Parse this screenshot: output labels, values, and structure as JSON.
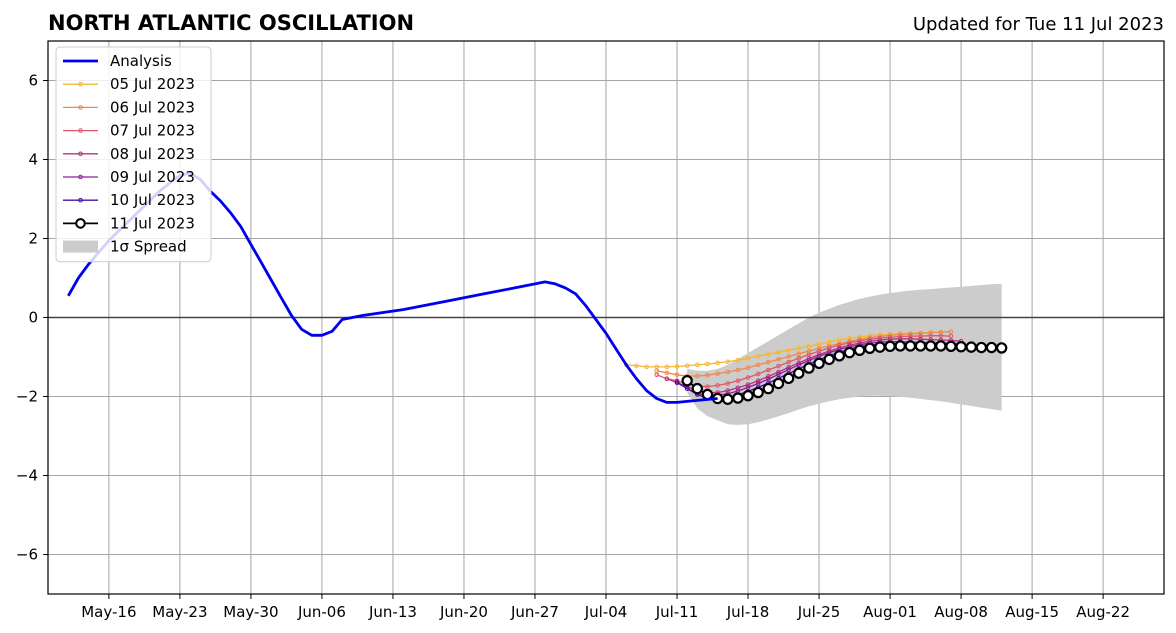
{
  "chart_data": {
    "type": "line",
    "title": "NORTH ATLANTIC OSCILLATION",
    "subtitle": "Updated for Tue 11 Jul 2023",
    "xlabel": "",
    "ylabel": "",
    "xlim": [
      "2023-05-10",
      "2023-08-28"
    ],
    "ylim": [
      -7,
      7
    ],
    "grid": true,
    "legend_position": "top-left",
    "x_ticks": [
      "2023-05-16",
      "2023-05-23",
      "2023-05-30",
      "2023-06-06",
      "2023-06-13",
      "2023-06-20",
      "2023-06-27",
      "2023-07-04",
      "2023-07-11",
      "2023-07-18",
      "2023-07-25",
      "2023-08-01",
      "2023-08-08",
      "2023-08-15",
      "2023-08-22"
    ],
    "x_tick_labels": [
      "May-16",
      "May-23",
      "May-30",
      "Jun-06",
      "Jun-13",
      "Jun-20",
      "Jun-27",
      "Jul-04",
      "Jul-11",
      "Jul-18",
      "Jul-25",
      "Aug-01",
      "Aug-08",
      "Aug-15",
      "Aug-22"
    ],
    "y_ticks": [
      -6,
      -4,
      -2,
      0,
      2,
      4,
      6
    ],
    "y_tick_labels": [
      "−6",
      "−4",
      "−2",
      "0",
      "2",
      "4",
      "6"
    ],
    "analysis": {
      "name": "Analysis",
      "color": "#0000ee",
      "points": [
        [
          "2023-05-12",
          0.55
        ],
        [
          "2023-05-13",
          1.0
        ],
        [
          "2023-05-14",
          1.35
        ],
        [
          "2023-05-15",
          1.65
        ],
        [
          "2023-05-16",
          1.95
        ],
        [
          "2023-05-17",
          2.2
        ],
        [
          "2023-05-18",
          2.45
        ],
        [
          "2023-05-19",
          2.7
        ],
        [
          "2023-05-20",
          2.95
        ],
        [
          "2023-05-21",
          3.2
        ],
        [
          "2023-05-22",
          3.4
        ],
        [
          "2023-05-23",
          3.6
        ],
        [
          "2023-05-24",
          3.65
        ],
        [
          "2023-05-25",
          3.5
        ],
        [
          "2023-05-26",
          3.2
        ],
        [
          "2023-05-27",
          2.95
        ],
        [
          "2023-05-28",
          2.65
        ],
        [
          "2023-05-29",
          2.3
        ],
        [
          "2023-05-30",
          1.85
        ],
        [
          "2023-05-31",
          1.4
        ],
        [
          "2023-06-01",
          0.95
        ],
        [
          "2023-06-02",
          0.5
        ],
        [
          "2023-06-03",
          0.05
        ],
        [
          "2023-06-04",
          -0.3
        ],
        [
          "2023-06-05",
          -0.45
        ],
        [
          "2023-06-06",
          -0.45
        ],
        [
          "2023-06-07",
          -0.35
        ],
        [
          "2023-06-08",
          -0.05
        ],
        [
          "2023-06-09",
          0.0
        ],
        [
          "2023-06-10",
          0.05
        ],
        [
          "2023-06-14",
          0.2
        ],
        [
          "2023-06-18",
          0.4
        ],
        [
          "2023-06-22",
          0.6
        ],
        [
          "2023-06-25",
          0.75
        ],
        [
          "2023-06-27",
          0.85
        ],
        [
          "2023-06-28",
          0.9
        ],
        [
          "2023-06-29",
          0.85
        ],
        [
          "2023-06-30",
          0.75
        ],
        [
          "2023-07-01",
          0.6
        ],
        [
          "2023-07-02",
          0.3
        ],
        [
          "2023-07-03",
          -0.05
        ],
        [
          "2023-07-04",
          -0.4
        ],
        [
          "2023-07-05",
          -0.8
        ],
        [
          "2023-07-06",
          -1.2
        ],
        [
          "2023-07-07",
          -1.55
        ],
        [
          "2023-07-08",
          -1.85
        ],
        [
          "2023-07-09",
          -2.05
        ],
        [
          "2023-07-10",
          -2.15
        ],
        [
          "2023-07-11",
          -2.15
        ],
        [
          "2023-07-13",
          -2.1
        ],
        [
          "2023-07-15",
          -2.05
        ]
      ]
    },
    "spread": {
      "name": "1σ Spread",
      "color": "#cccccc",
      "x_start": "2023-07-12",
      "upper": [
        -1.3,
        -1.35,
        -1.35,
        -1.3,
        -1.2,
        -1.05,
        -0.9,
        -0.75,
        -0.6,
        -0.45,
        -0.3,
        -0.15,
        0.0,
        0.12,
        0.22,
        0.32,
        0.4,
        0.47,
        0.53,
        0.58,
        0.62,
        0.65,
        0.68,
        0.7,
        0.72,
        0.74,
        0.76,
        0.78,
        0.8,
        0.82,
        0.84,
        0.85
      ],
      "lower": [
        -1.9,
        -2.3,
        -2.5,
        -2.6,
        -2.7,
        -2.72,
        -2.7,
        -2.65,
        -2.58,
        -2.5,
        -2.42,
        -2.33,
        -2.25,
        -2.18,
        -2.12,
        -2.07,
        -2.03,
        -2.0,
        -1.98,
        -1.98,
        -1.99,
        -2.01,
        -2.03,
        -2.06,
        -2.09,
        -2.12,
        -2.16,
        -2.2,
        -2.24,
        -2.28,
        -2.32,
        -2.36
      ]
    },
    "series": [
      {
        "name": "05 Jul 2023",
        "color": "#f7b733",
        "x_start": "2023-07-06",
        "values": [
          -1.2,
          -1.22,
          -1.25,
          -1.25,
          -1.25,
          -1.24,
          -1.22,
          -1.2,
          -1.18,
          -1.15,
          -1.12,
          -1.08,
          -1.03,
          -0.98,
          -0.93,
          -0.88,
          -0.83,
          -0.78,
          -0.73,
          -0.68,
          -0.62,
          -0.57,
          -0.53,
          -0.49,
          -0.46,
          -0.44,
          -0.43,
          -0.41,
          -0.4,
          -0.39,
          -0.38
        ]
      },
      {
        "name": "06 Jul 2023",
        "color": "#ef8a4a",
        "x_start": "2023-07-09",
        "values": [
          -1.35,
          -1.4,
          -1.45,
          -1.48,
          -1.48,
          -1.46,
          -1.42,
          -1.38,
          -1.33,
          -1.27,
          -1.2,
          -1.13,
          -1.06,
          -0.99,
          -0.92,
          -0.85,
          -0.78,
          -0.72,
          -0.66,
          -0.6,
          -0.55,
          -0.51,
          -0.48,
          -0.45,
          -0.43,
          -0.41,
          -0.4,
          -0.38,
          -0.37,
          -0.36
        ]
      },
      {
        "name": "07 Jul 2023",
        "color": "#dc5a6a",
        "x_start": "2023-07-09",
        "values": [
          -1.45,
          -1.55,
          -1.6,
          -1.68,
          -1.74,
          -1.75,
          -1.72,
          -1.67,
          -1.6,
          -1.52,
          -1.43,
          -1.33,
          -1.23,
          -1.13,
          -1.03,
          -0.94,
          -0.85,
          -0.77,
          -0.7,
          -0.64,
          -0.59,
          -0.55,
          -0.52,
          -0.5,
          -0.48,
          -0.47,
          -0.47,
          -0.46,
          -0.46,
          -0.47
        ]
      },
      {
        "name": "08 Jul 2023",
        "color": "#b6357c",
        "x_start": "2023-07-10",
        "values": [
          -1.55,
          -1.65,
          -1.75,
          -1.85,
          -1.9,
          -1.9,
          -1.85,
          -1.78,
          -1.7,
          -1.6,
          -1.49,
          -1.38,
          -1.26,
          -1.15,
          -1.04,
          -0.94,
          -0.85,
          -0.77,
          -0.7,
          -0.65,
          -0.6,
          -0.57,
          -0.55,
          -0.54,
          -0.54,
          -0.55,
          -0.56,
          -0.57,
          -0.58,
          -0.6
        ]
      },
      {
        "name": "09 Jul 2023",
        "color": "#8f1f99",
        "x_start": "2023-07-11",
        "values": [
          -1.62,
          -1.8,
          -1.92,
          -1.98,
          -1.97,
          -1.93,
          -1.86,
          -1.77,
          -1.67,
          -1.56,
          -1.44,
          -1.32,
          -1.2,
          -1.09,
          -0.98,
          -0.89,
          -0.81,
          -0.74,
          -0.69,
          -0.65,
          -0.62,
          -0.61,
          -0.61,
          -0.62,
          -0.63,
          -0.64,
          -0.65,
          -0.66,
          -0.67
        ]
      },
      {
        "name": "10 Jul 2023",
        "color": "#4b0f9c",
        "x_start": "2023-07-11",
        "values": [
          -1.65,
          -1.8,
          -1.95,
          -2.05,
          -2.07,
          -2.03,
          -1.96,
          -1.87,
          -1.77,
          -1.66,
          -1.54,
          -1.42,
          -1.3,
          -1.18,
          -1.07,
          -0.97,
          -0.88,
          -0.8,
          -0.74,
          -0.7,
          -0.67,
          -0.66,
          -0.66,
          -0.67,
          -0.68,
          -0.69,
          -0.7,
          -0.71
        ]
      },
      {
        "name": "11 Jul 2023",
        "color": "#000000",
        "marker": "open-circle",
        "x_start": "2023-07-12",
        "values": [
          -1.6,
          -1.8,
          -1.95,
          -2.05,
          -2.07,
          -2.04,
          -1.98,
          -1.9,
          -1.8,
          -1.67,
          -1.54,
          -1.41,
          -1.28,
          -1.16,
          -1.06,
          -0.97,
          -0.89,
          -0.83,
          -0.78,
          -0.75,
          -0.73,
          -0.72,
          -0.72,
          -0.72,
          -0.72,
          -0.72,
          -0.73,
          -0.74,
          -0.75,
          -0.76,
          -0.76,
          -0.77
        ]
      }
    ]
  }
}
